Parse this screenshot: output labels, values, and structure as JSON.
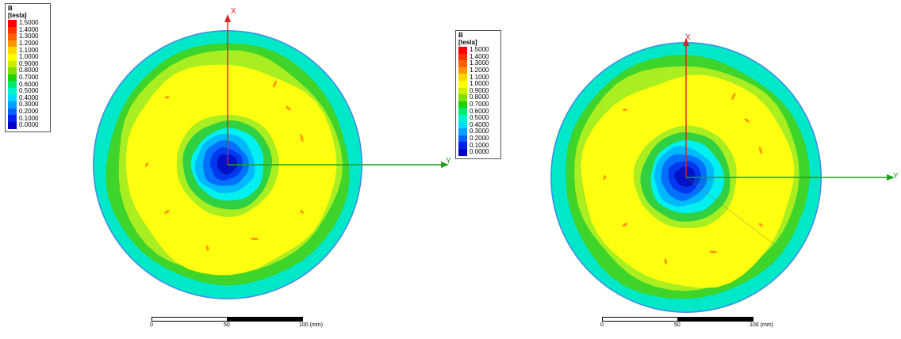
{
  "legend": {
    "title_line1": "B",
    "title_line2": "[tesla]",
    "entries": [
      {
        "value": "1.5000",
        "color": "#ff0000"
      },
      {
        "value": "1.4000",
        "color": "#ff3000"
      },
      {
        "value": "1.3000",
        "color": "#ff6000"
      },
      {
        "value": "1.2000",
        "color": "#ff9800"
      },
      {
        "value": "1.1000",
        "color": "#ffd800"
      },
      {
        "value": "1.0000",
        "color": "#ffff00"
      },
      {
        "value": "0.9000",
        "color": "#c8f000"
      },
      {
        "value": "0.8000",
        "color": "#80e000"
      },
      {
        "value": "0.7000",
        "color": "#20d000"
      },
      {
        "value": "0.6000",
        "color": "#00e870"
      },
      {
        "value": "0.5000",
        "color": "#00f0d0"
      },
      {
        "value": "0.4000",
        "color": "#00d8ff"
      },
      {
        "value": "0.3000",
        "color": "#00a0ff"
      },
      {
        "value": "0.2000",
        "color": "#0060ff"
      },
      {
        "value": "0.1000",
        "color": "#0020f0"
      },
      {
        "value": "0.0000",
        "color": "#0000c8"
      }
    ]
  },
  "axes": {
    "x_label": "X",
    "y_label": "Y"
  },
  "scale_bar": {
    "label_0": "0",
    "label_50": "50",
    "label_100": "100 (mm)"
  },
  "colors": {
    "outer_rim": "#3f8fe8",
    "outer_band": "#00e8c8",
    "green_band": "#3fd42a",
    "light_green": "#a8ee20",
    "yellow_field": "#ffff10",
    "hot_spot": "#ff9a10",
    "inner_green": "#30d040",
    "inner_cyan": "#00f0f0",
    "blue_1": "#00b8ff",
    "blue_2": "#0070ff",
    "blue_3": "#0038f0",
    "blue_core": "#0010c8",
    "x_axis": "#e02020",
    "y_axis": "#20a020"
  }
}
